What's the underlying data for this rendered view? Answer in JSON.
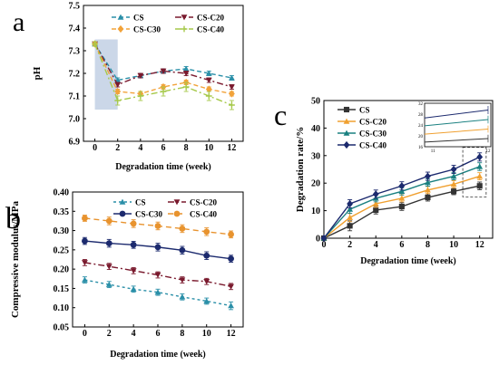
{
  "chart_data": [
    {
      "panel_label": "a",
      "type": "line",
      "x": [
        0,
        2,
        4,
        6,
        8,
        10,
        12
      ],
      "xlabel": "Degradation time (week)",
      "ylabel": "pH",
      "xlim": [
        -1,
        13
      ],
      "ylim": [
        6.9,
        7.5
      ],
      "xticks": [
        "0",
        "2",
        "4",
        "6",
        "8",
        "10",
        "12"
      ],
      "yticks": [
        "6.9",
        "7.0",
        "7.1",
        "7.2",
        "7.3",
        "7.4",
        "7.5"
      ],
      "legend_position": "top",
      "series": [
        {
          "name": "CS",
          "values": [
            7.33,
            7.17,
            7.19,
            7.21,
            7.22,
            7.2,
            7.18
          ],
          "errors": [
            0.01,
            0.01,
            0.01,
            0.01,
            0.01,
            0.01,
            0.01
          ],
          "color": "#2a8fa8"
        },
        {
          "name": "CS-C20",
          "values": [
            7.33,
            7.15,
            7.19,
            7.21,
            7.2,
            7.17,
            7.14
          ],
          "errors": [
            0.01,
            0.01,
            0.01,
            0.01,
            0.01,
            0.01,
            0.01
          ],
          "color": "#7a1a2e"
        },
        {
          "name": "CS-C30",
          "values": [
            7.33,
            7.12,
            7.11,
            7.14,
            7.16,
            7.13,
            7.11
          ],
          "errors": [
            0.01,
            0.01,
            0.01,
            0.01,
            0.01,
            0.01,
            0.01
          ],
          "color": "#f2a33a"
        },
        {
          "name": "CS-C40",
          "values": [
            7.33,
            7.08,
            7.1,
            7.12,
            7.14,
            7.1,
            7.06
          ],
          "errors": [
            0.01,
            0.02,
            0.02,
            0.02,
            0.02,
            0.02,
            0.02
          ],
          "color": "#a6c94a"
        }
      ],
      "shaded_region": {
        "x": [
          0,
          2
        ],
        "y": [
          7.04,
          7.35
        ],
        "color": "#b9c9e0"
      }
    },
    {
      "panel_label": "b",
      "type": "line",
      "x": [
        0,
        2,
        4,
        6,
        8,
        10,
        12
      ],
      "xlabel": "Degradation time (week)",
      "ylabel": "Compressive modulus/MPa",
      "xlim": [
        -1,
        13
      ],
      "ylim": [
        0.05,
        0.4
      ],
      "xticks": [
        "0",
        "2",
        "4",
        "6",
        "8",
        "10",
        "12"
      ],
      "yticks": [
        "0.05",
        "0.10",
        "0.15",
        "0.20",
        "0.25",
        "0.30",
        "0.35",
        "0.40"
      ],
      "legend_position": "top",
      "series": [
        {
          "name": "CS",
          "values": [
            0.172,
            0.16,
            0.148,
            0.14,
            0.128,
            0.117,
            0.105
          ],
          "errors": [
            0.008,
            0.008,
            0.008,
            0.008,
            0.008,
            0.008,
            0.01
          ],
          "color": "#2a8fa8"
        },
        {
          "name": "CS-C20",
          "values": [
            0.217,
            0.207,
            0.196,
            0.185,
            0.172,
            0.168,
            0.155
          ],
          "errors": [
            0.008,
            0.008,
            0.008,
            0.008,
            0.008,
            0.008,
            0.008
          ],
          "color": "#7a1a2e"
        },
        {
          "name": "CS-C30",
          "values": [
            0.273,
            0.267,
            0.263,
            0.257,
            0.249,
            0.235,
            0.227
          ],
          "errors": [
            0.009,
            0.01,
            0.009,
            0.01,
            0.01,
            0.01,
            0.009
          ],
          "color": "#1c2a6e"
        },
        {
          "name": "CS-C40",
          "values": [
            0.332,
            0.325,
            0.318,
            0.312,
            0.305,
            0.297,
            0.29
          ],
          "errors": [
            0.008,
            0.01,
            0.01,
            0.01,
            0.01,
            0.01,
            0.009
          ],
          "color": "#e8932e"
        }
      ]
    },
    {
      "panel_label": "c",
      "type": "line",
      "x": [
        0,
        2,
        4,
        6,
        8,
        10,
        12
      ],
      "xlabel": "Degradation time (week)",
      "ylabel": "Degradation rate/%",
      "xlim": [
        0,
        13
      ],
      "ylim": [
        0,
        50
      ],
      "xticks": [
        "0",
        "2",
        "4",
        "6",
        "8",
        "10",
        "12"
      ],
      "yticks": [
        "0",
        "10",
        "20",
        "30",
        "40",
        "50"
      ],
      "legend_position": "top-left",
      "series": [
        {
          "name": "CS",
          "values": [
            0,
            4.5,
            10.2,
            11.5,
            14.8,
            17.0,
            19.0
          ],
          "errors": [
            0,
            1.8,
            1.4,
            1.4,
            1.3,
            1.2,
            1.4
          ],
          "color": "#333333"
        },
        {
          "name": "CS-C20",
          "values": [
            0,
            7.5,
            12.5,
            14.5,
            17.5,
            19.6,
            22.5
          ],
          "errors": [
            0,
            1.5,
            1.3,
            1.3,
            1.3,
            1.3,
            1.3
          ],
          "color": "#f0a030"
        },
        {
          "name": "CS-C30",
          "values": [
            0,
            10.5,
            14.5,
            17.0,
            20.2,
            22.5,
            26.0
          ],
          "errors": [
            0,
            1.5,
            1.3,
            1.3,
            1.3,
            1.3,
            1.4
          ],
          "color": "#1a8080"
        },
        {
          "name": "CS-C40",
          "values": [
            0,
            12.5,
            16.0,
            19.0,
            22.5,
            25.0,
            29.5
          ],
          "errors": [
            0,
            1.5,
            1.5,
            1.5,
            1.5,
            1.5,
            1.5
          ],
          "color": "#1c2a6e"
        }
      ],
      "inset": {
        "x": [
          11,
          12
        ],
        "xticks": [
          "11",
          "12"
        ],
        "yticks": [
          "16",
          "20",
          "24",
          "28",
          "32"
        ],
        "ylim": [
          16,
          32
        ]
      }
    }
  ]
}
